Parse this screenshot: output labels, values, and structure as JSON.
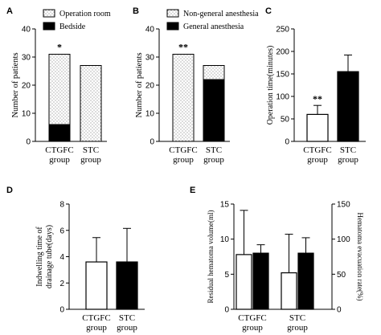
{
  "panel_letters": [
    "A",
    "B",
    "C",
    "D",
    "E"
  ],
  "colors": {
    "black": "#000000",
    "white": "#ffffff",
    "dotted_fill": "#ececec"
  },
  "chart_data": [
    {
      "id": "A",
      "type": "bar",
      "stacked": true,
      "categories": [
        "CTGFC group",
        "STC group"
      ],
      "series": [
        {
          "name": "Bedside",
          "values": [
            6,
            0
          ],
          "fill": "black"
        },
        {
          "name": "Operation room",
          "values": [
            25,
            27
          ],
          "fill": "dotted"
        }
      ],
      "ylabel": "Number of patients",
      "ylim": [
        0,
        40
      ],
      "yticks": [
        0,
        10,
        20,
        30,
        40
      ],
      "legend": [
        "Operation room",
        "Bedside"
      ],
      "significance": [
        "*",
        ""
      ]
    },
    {
      "id": "B",
      "type": "bar",
      "stacked": true,
      "categories": [
        "CTGFC group",
        "STC group"
      ],
      "series": [
        {
          "name": "General anesthesia",
          "values": [
            0,
            22
          ],
          "fill": "black"
        },
        {
          "name": "Non-general anesthesia",
          "values": [
            31,
            5
          ],
          "fill": "dotted"
        }
      ],
      "ylabel": "Number of patients",
      "ylim": [
        0,
        40
      ],
      "yticks": [
        0,
        10,
        20,
        30,
        40
      ],
      "legend": [
        "Non-general anesthesia",
        "General anesthesia"
      ],
      "significance": [
        "**",
        ""
      ]
    },
    {
      "id": "C",
      "type": "bar",
      "categories": [
        "CTGFC group",
        "STC group"
      ],
      "values": [
        60,
        155
      ],
      "errors": [
        20,
        37
      ],
      "fills": [
        "white",
        "black"
      ],
      "ylabel": "Operation time(minutes)",
      "ylim": [
        0,
        250
      ],
      "yticks": [
        0,
        50,
        100,
        150,
        200,
        250
      ],
      "significance": [
        "**",
        ""
      ]
    },
    {
      "id": "D",
      "type": "bar",
      "categories": [
        "CTGFC group",
        "STC group"
      ],
      "values": [
        3.6,
        3.6
      ],
      "errors": [
        1.85,
        2.55
      ],
      "fills": [
        "white",
        "black"
      ],
      "ylabel": "Indwelling time of drainage tube(days)",
      "ylim": [
        0,
        8
      ],
      "yticks": [
        0,
        2,
        4,
        6,
        8
      ]
    },
    {
      "id": "E",
      "type": "bar",
      "dual_axis": true,
      "categories": [
        "CTGFC group",
        "STC group"
      ],
      "series": [
        {
          "name": "Residual hematoma volume(ml)",
          "axis": "left",
          "values": [
            7.8,
            5.2
          ],
          "errors": [
            6.3,
            5.5
          ],
          "fill": "white"
        },
        {
          "name": "Hematoma evacuation rate(%)",
          "axis": "right",
          "values": [
            80,
            80
          ],
          "errors": [
            12,
            22
          ],
          "fill": "black"
        }
      ],
      "ylabel_left": "Residual hematoma volume(ml)",
      "ylabel_right": "Hematoma evacuation rate(%)",
      "ylim_left": [
        0,
        15
      ],
      "ylim_right": [
        0,
        150
      ],
      "yticks_left": [
        0,
        5,
        10,
        15
      ],
      "yticks_right": [
        0,
        50,
        100,
        150
      ]
    }
  ]
}
